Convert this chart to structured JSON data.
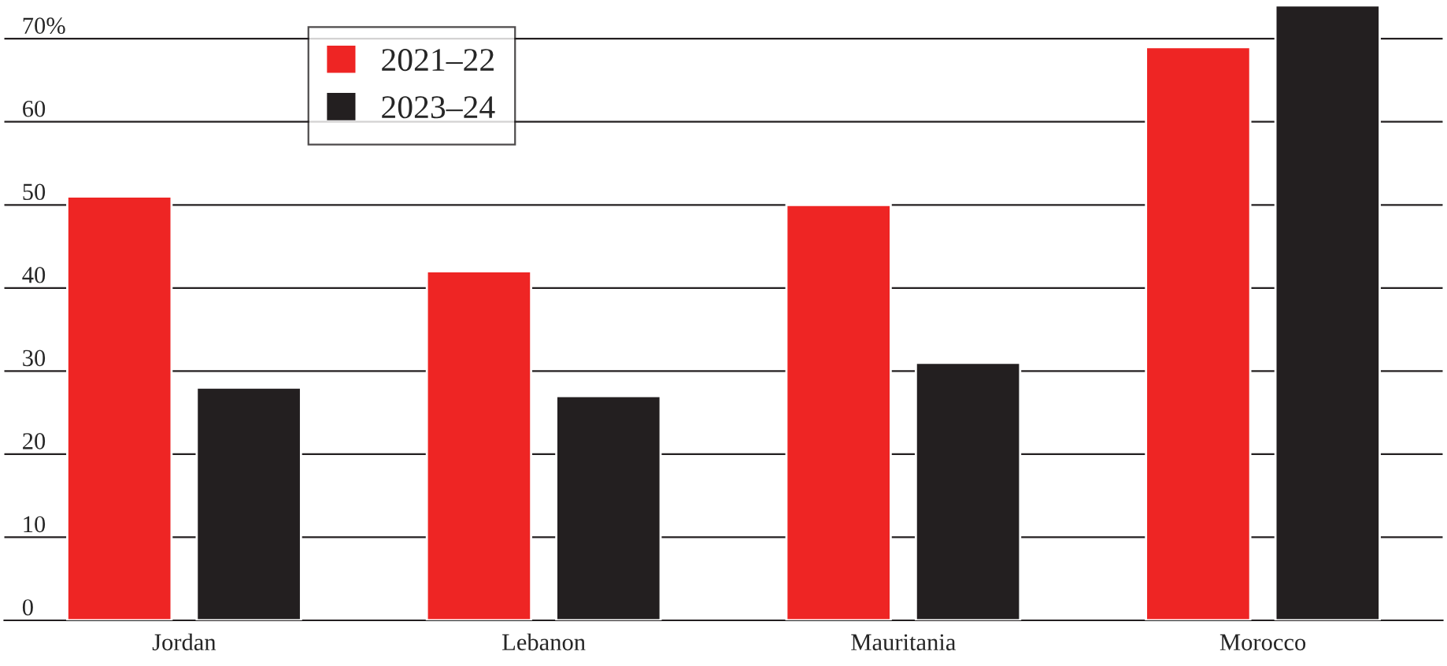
{
  "chart_data": {
    "type": "bar",
    "categories": [
      "Jordan",
      "Lebanon",
      "Mauritania",
      "Morocco"
    ],
    "series": [
      {
        "name": "2021–22",
        "color": "#ee2524",
        "values": [
          51,
          42,
          50,
          69
        ]
      },
      {
        "name": "2023–24",
        "color": "#231f20",
        "values": [
          28,
          27,
          31,
          74
        ]
      }
    ],
    "ylim": [
      0,
      74.5
    ],
    "yticks": [
      0,
      10,
      20,
      30,
      40,
      50,
      60,
      {
        "value": 70,
        "label": "70%"
      }
    ],
    "grid": "y",
    "legend": "top left"
  }
}
